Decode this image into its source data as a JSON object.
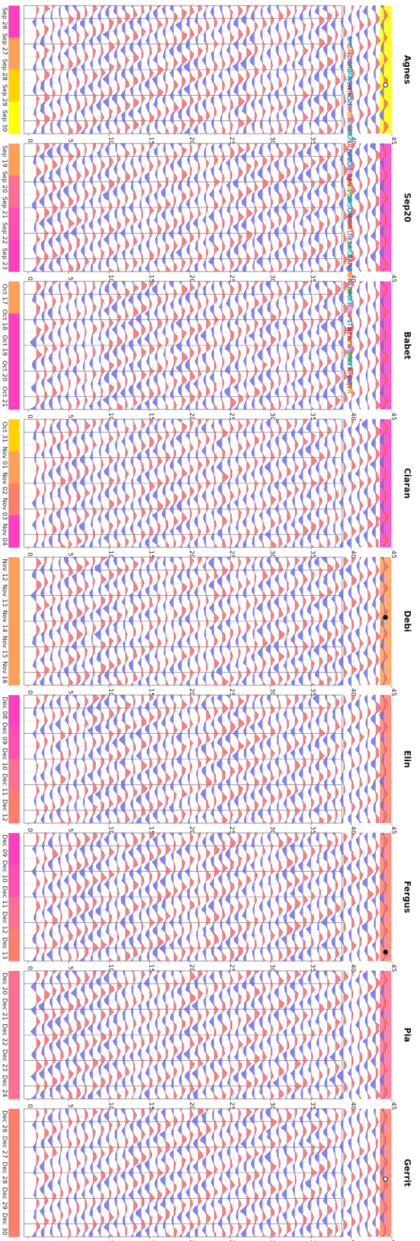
{
  "chart_data": {
    "type": "area",
    "layout": "nine panels stacked vertically, rendered rotated 90 degrees; each panel is a ridgeline of per-station traces",
    "y_ticks": [
      0,
      5,
      10,
      15,
      20,
      25,
      30,
      35,
      40,
      45
    ],
    "ylim": [
      0,
      45
    ],
    "grid": true,
    "colors": {
      "positive_fill": "#f26b6b",
      "negative_fill": "#6a6ff0",
      "trace_line": "#7a2b6e",
      "vertical_gridline": "#555555",
      "dashed_gridline": "#bbbbbb",
      "marker": "#111111"
    },
    "stations": [
      {
        "label": "SHE",
        "color": "#1f77b4"
      },
      {
        "label": "HAR",
        "color": "#ff7f0e"
      },
      {
        "label": "LOW",
        "color": "#9467bd"
      },
      {
        "label": "CRC",
        "color": "#2ca02c"
      },
      {
        "label": "IMM",
        "color": "#17becf"
      },
      {
        "label": "NSH",
        "color": "#1f77b4"
      },
      {
        "label": "WHI",
        "color": "#d62728"
      },
      {
        "label": "NSH",
        "color": "#1f77b4"
      },
      {
        "label": "LEI",
        "color": "#e377c2"
      },
      {
        "label": "ABE",
        "color": "#ff7f0e"
      },
      {
        "label": "WIC",
        "color": "#9467bd"
      },
      {
        "label": "LER",
        "color": "#2ca02c"
      },
      {
        "label": "KIN",
        "color": "#17becf"
      },
      {
        "label": "ULL",
        "color": "#d62728"
      },
      {
        "label": "STO",
        "color": "#1f77b4"
      },
      {
        "label": "TOB",
        "color": "#1f77b4"
      },
      {
        "label": "PRU",
        "color": "#e377c2"
      },
      {
        "label": "BAN",
        "color": "#d62728"
      },
      {
        "label": "MIL",
        "color": "#ff7f0e"
      },
      {
        "label": "POR",
        "color": "#2ca02c"
      },
      {
        "label": "ISL",
        "color": "#17becf"
      },
      {
        "label": "IOM",
        "color": "#1f77b4"
      },
      {
        "label": "WOR",
        "color": "#d62728"
      },
      {
        "label": "ILF",
        "color": "#ff7f0e"
      },
      {
        "label": "LIV",
        "color": "#9467bd"
      },
      {
        "label": "LLA",
        "color": "#2ca02c"
      },
      {
        "label": "HOL",
        "color": "#17becf"
      },
      {
        "label": "BAR",
        "color": "#d62728"
      },
      {
        "label": "FIS",
        "color": "#1f77b4"
      },
      {
        "label": "MHA",
        "color": "#ff7f0e"
      },
      {
        "label": "MUM",
        "color": "#9467bd"
      },
      {
        "label": "NPO",
        "color": "#2ca02c"
      },
      {
        "label": "PTB",
        "color": "#17becf"
      },
      {
        "label": "HIN",
        "color": "#e377c2"
      },
      {
        "label": "ILF",
        "color": "#ff7f0e"
      },
      {
        "label": "STM",
        "color": "#1f77b4"
      },
      {
        "label": "NEW",
        "color": "#d62728"
      },
      {
        "label": "DEV",
        "color": "#ff7f0e"
      },
      {
        "label": "WEY",
        "color": "#9467bd"
      },
      {
        "label": "BOU",
        "color": "#2ca02c"
      },
      {
        "label": "PTM",
        "color": "#17becf"
      },
      {
        "label": "NHA",
        "color": "#d62728"
      },
      {
        "label": "DOV",
        "color": "#1f77b4"
      },
      {
        "label": "JER",
        "color": "#ff7f0e"
      }
    ],
    "panels": [
      {
        "title": "Agnes",
        "dates": [
          "Sep 26",
          "Sep 27",
          "Sep 28",
          "Sep 29",
          "Sep 30"
        ],
        "bands": [
          "#ff3fbf",
          "#ff9f5a",
          "#ffd200",
          "#ffff00"
        ],
        "marker": "open",
        "marker_at": 0.62
      },
      {
        "title": "Sep20",
        "dates": [
          "Sep 19",
          "Sep 20",
          "Sep 21",
          "Sep 22",
          "Sep 23"
        ],
        "bands": [
          "#ff9f5a",
          "#ff6f8f",
          "#ff4fb0",
          "#ff3fbf"
        ],
        "marker": "",
        "marker_at": 0
      },
      {
        "title": "Babet",
        "dates": [
          "Oct 17",
          "Oct 18",
          "Oct 19",
          "Oct 20",
          "Oct 21"
        ],
        "bands": [
          "#ff9f5a",
          "#ff3fbf",
          "#ff3fbf",
          "#ff3fbf"
        ],
        "marker": "",
        "marker_at": 0
      },
      {
        "title": "Ciaran",
        "dates": [
          "Oct 31",
          "Nov 01",
          "Nov 02",
          "Nov 03",
          "Nov 04"
        ],
        "bands": [
          "#ffd200",
          "#ff9f5a",
          "#ff7f6f",
          "#ff3fbf"
        ],
        "marker": "",
        "marker_at": 0
      },
      {
        "title": "Debi",
        "dates": [
          "Nov 12",
          "Nov 13",
          "Nov 14",
          "Nov 15",
          "Nov 16"
        ],
        "bands": [
          "#ff9f5a",
          "#ff9f5a",
          "#ff9f5a",
          "#ff9f5a"
        ],
        "marker": "filled",
        "marker_at": 0.47
      },
      {
        "title": "Elin",
        "dates": [
          "Dec 08",
          "Dec 09",
          "Dec 10",
          "Dec 11",
          "Dec 12"
        ],
        "bands": [
          "#ff3fbf",
          "#ff4fb0",
          "#ff6f8f",
          "#ff7f6f"
        ],
        "marker": "",
        "marker_at": 0
      },
      {
        "title": "Fergus",
        "dates": [
          "Dec 09",
          "Dec 10",
          "Dec 11",
          "Dec 12",
          "Dec 13"
        ],
        "bands": [
          "#ff3fbf",
          "#ff4fb0",
          "#ff6f8f",
          "#ff7f6f"
        ],
        "marker": "filled",
        "marker_at": 0.93
      },
      {
        "title": "Pia",
        "dates": [
          "Dec 20",
          "Dec 21",
          "Dec 22",
          "Dec 23",
          "Dec 24"
        ],
        "bands": [
          "#ff6f8f",
          "#ff6f8f",
          "#ff6f8f",
          "#ff6f8f"
        ],
        "marker": "",
        "marker_at": 0
      },
      {
        "title": "Gerrit",
        "dates": [
          "Dec 26",
          "Dec 27",
          "Dec 28",
          "Dec 29",
          "Dec 30"
        ],
        "bands": [
          "#ff7f6f",
          "#ff7f6f",
          "#ff7f6f",
          "#ff7f6f"
        ],
        "marker": "open",
        "marker_at": 0.55
      }
    ]
  }
}
